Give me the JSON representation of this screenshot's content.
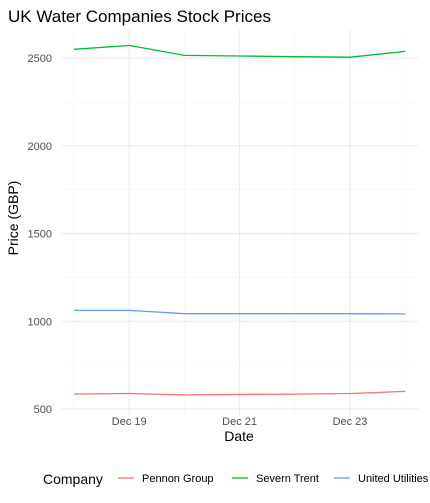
{
  "chart_data": {
    "type": "line",
    "title": "UK Water Companies Stock Prices",
    "xlabel": "Date",
    "ylabel": "Price (GBP)",
    "x": [
      "Dec 18",
      "Dec 19",
      "Dec 20",
      "Dec 21",
      "Dec 22",
      "Dec 23",
      "Dec 24"
    ],
    "x_ticks": [
      "Dec 19",
      "Dec 21",
      "Dec 23"
    ],
    "y_ticks": [
      500,
      1000,
      1500,
      2000,
      2500
    ],
    "ylim": [
      460,
      2660
    ],
    "grid": true,
    "legend": {
      "title": "Company",
      "placement": "bottom"
    },
    "series": [
      {
        "name": "Pennon Group",
        "color": "#F8766D",
        "values": [
          585,
          588,
          580,
          583,
          585,
          588,
          600
        ]
      },
      {
        "name": "Severn Trent",
        "color": "#00BA38",
        "values": [
          2550,
          2572,
          2515,
          2512,
          2508,
          2505,
          2538
        ]
      },
      {
        "name": "United Utilities",
        "color": "#619CFF",
        "values": [
          1062,
          1062,
          1043,
          1043,
          1043,
          1043,
          1042
        ]
      }
    ]
  }
}
